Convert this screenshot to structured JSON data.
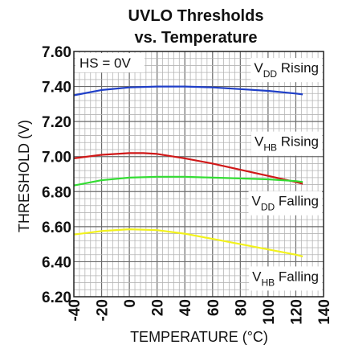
{
  "chart_data": {
    "type": "line",
    "title_line1": "UVLO Thresholds",
    "title_line2": "vs. Temperature",
    "xlabel": "TEMPERATURE (°C)",
    "ylabel": "THRESHOLD (V)",
    "xlim": [
      -40,
      140
    ],
    "ylim": [
      6.2,
      7.6
    ],
    "x_ticks": [
      "-40",
      "-20",
      "0",
      "20",
      "40",
      "60",
      "80",
      "100",
      "120",
      "140"
    ],
    "y_ticks": [
      "6.20",
      "6.40",
      "6.60",
      "6.80",
      "7.00",
      "7.20",
      "7.40",
      "7.60"
    ],
    "grid": true,
    "annotation": "HS = 0V",
    "series": [
      {
        "name_main": "V",
        "name_sub": "DD",
        "name_rest": "Rising",
        "color": "#1f3fc8",
        "x": [
          -40,
          -20,
          0,
          20,
          40,
          60,
          80,
          100,
          120,
          125
        ],
        "y": [
          7.35,
          7.38,
          7.395,
          7.4,
          7.4,
          7.395,
          7.385,
          7.375,
          7.36,
          7.355
        ]
      },
      {
        "name_main": "V",
        "name_sub": "HB",
        "name_rest": "Rising",
        "color": "#d01818",
        "x": [
          -40,
          -20,
          0,
          10,
          20,
          40,
          60,
          80,
          100,
          120,
          125
        ],
        "y": [
          6.99,
          7.01,
          7.02,
          7.02,
          7.015,
          6.99,
          6.96,
          6.925,
          6.89,
          6.855,
          6.845
        ]
      },
      {
        "name_main": "V",
        "name_sub": "DD",
        "name_rest": "Falling",
        "color": "#33dd33",
        "x": [
          -40,
          -20,
          0,
          20,
          40,
          60,
          80,
          100,
          120,
          125
        ],
        "y": [
          6.835,
          6.865,
          6.88,
          6.885,
          6.885,
          6.88,
          6.875,
          6.87,
          6.86,
          6.855
        ]
      },
      {
        "name_main": "V",
        "name_sub": "HB",
        "name_rest": "Falling",
        "color": "#f2f21c",
        "x": [
          -40,
          -20,
          0,
          20,
          40,
          60,
          80,
          100,
          120,
          125
        ],
        "y": [
          6.555,
          6.575,
          6.585,
          6.58,
          6.56,
          6.53,
          6.5,
          6.47,
          6.44,
          6.43
        ]
      }
    ]
  }
}
